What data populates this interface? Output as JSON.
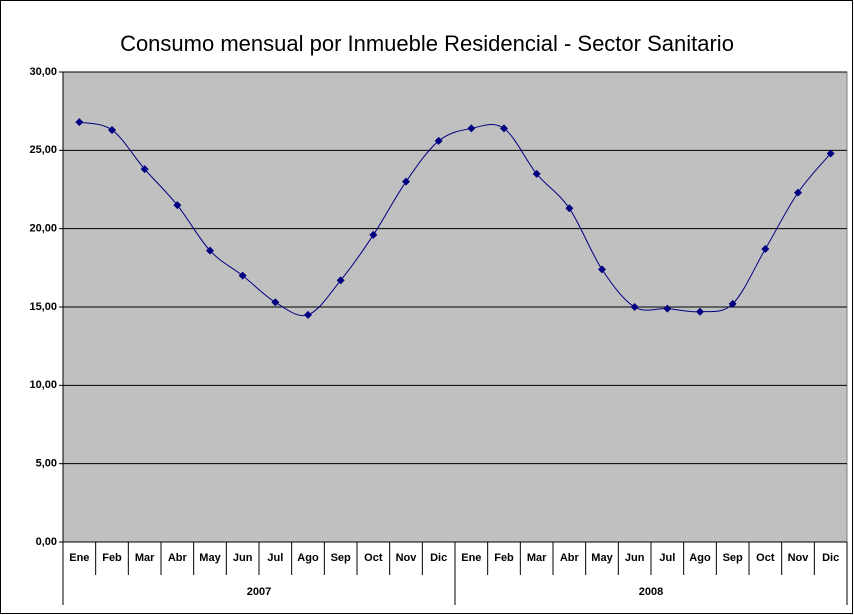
{
  "chart_data": {
    "type": "line",
    "title": "Consumo mensual por Inmueble Residencial - Sector Sanitario",
    "categories": [
      "Ene",
      "Feb",
      "Mar",
      "Abr",
      "May",
      "Jun",
      "Jul",
      "Ago",
      "Sep",
      "Oct",
      "Nov",
      "Dic",
      "Ene",
      "Feb",
      "Mar",
      "Abr",
      "May",
      "Jun",
      "Jul",
      "Ago",
      "Sep",
      "Oct",
      "Nov",
      "Dic"
    ],
    "groups": [
      "2007",
      "2008"
    ],
    "values": [
      26.8,
      26.3,
      23.8,
      21.5,
      18.6,
      17.0,
      15.3,
      14.5,
      16.7,
      19.6,
      23.0,
      25.6,
      26.4,
      26.4,
      23.5,
      21.3,
      17.4,
      15.0,
      14.9,
      14.7,
      15.2,
      18.7,
      22.3,
      24.8
    ],
    "color": "#000080",
    "plot_background": "#c0c0c0",
    "smooth": true,
    "ylim": [
      0,
      30
    ],
    "yticks": [
      {
        "value": 0,
        "label": "0,00"
      },
      {
        "value": 5,
        "label": "5,00"
      },
      {
        "value": 10,
        "label": "10,00"
      },
      {
        "value": 15,
        "label": "15,00"
      },
      {
        "value": 20,
        "label": "20,00"
      },
      {
        "value": 25,
        "label": "25,00"
      },
      {
        "value": 30,
        "label": "30,00"
      }
    ],
    "grid": true
  }
}
